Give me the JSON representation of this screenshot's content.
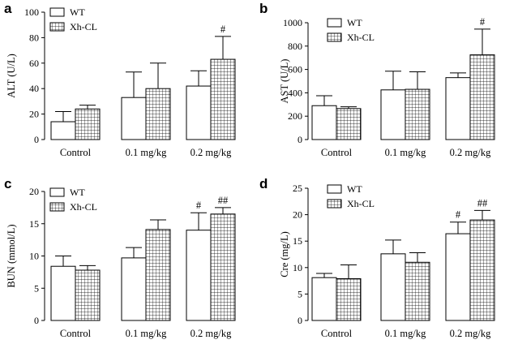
{
  "chart_data": [
    {
      "type": "bar",
      "panel": "a",
      "ylabel": "ALT (U/L)",
      "ylim": [
        0,
        100
      ],
      "yticks": [
        0,
        20,
        40,
        60,
        80,
        100
      ],
      "categories": [
        "Control",
        "0.1 mg/kg",
        "0.2 mg/kg"
      ],
      "series": [
        {
          "name": "WT",
          "pattern": "open",
          "values": [
            14,
            33,
            42
          ],
          "errors": [
            8,
            20,
            12
          ]
        },
        {
          "name": "Xh-CL",
          "pattern": "grid",
          "values": [
            24,
            40,
            63
          ],
          "errors": [
            3,
            20,
            18
          ]
        }
      ],
      "annotations": [
        {
          "series": 1,
          "category": 2,
          "text": "#"
        }
      ],
      "legend": "top-left"
    },
    {
      "type": "bar",
      "panel": "b",
      "ylabel": "AST (U/L)",
      "ylim": [
        0,
        1000
      ],
      "yticks": [
        0,
        200,
        400,
        600,
        800,
        1000
      ],
      "categories": [
        "Control",
        "0.1 mg/kg",
        "0.2 mg/kg"
      ],
      "series": [
        {
          "name": "WT",
          "pattern": "open",
          "values": [
            290,
            425,
            530
          ],
          "errors": [
            85,
            160,
            40
          ]
        },
        {
          "name": "Xh-CL",
          "pattern": "grid",
          "values": [
            265,
            430,
            725
          ],
          "errors": [
            15,
            150,
            220
          ]
        }
      ],
      "annotations": [
        {
          "series": 1,
          "category": 2,
          "text": "#"
        }
      ],
      "legend": "top-left"
    },
    {
      "type": "bar",
      "panel": "c",
      "ylabel": "BUN (mmol/L)",
      "ylim": [
        0,
        20
      ],
      "yticks": [
        0,
        5,
        10,
        15,
        20
      ],
      "categories": [
        "Control",
        "0.1 mg/kg",
        "0.2 mg/kg"
      ],
      "series": [
        {
          "name": "WT",
          "pattern": "open",
          "values": [
            8.4,
            9.7,
            14.0
          ],
          "errors": [
            1.6,
            1.6,
            2.7
          ]
        },
        {
          "name": "Xh-CL",
          "pattern": "grid",
          "values": [
            7.8,
            14.1,
            16.5
          ],
          "errors": [
            0.7,
            1.5,
            1.0
          ]
        }
      ],
      "annotations": [
        {
          "series": 0,
          "category": 2,
          "text": "#"
        },
        {
          "series": 1,
          "category": 2,
          "text": "##"
        }
      ],
      "legend": "top-left"
    },
    {
      "type": "bar",
      "panel": "d",
      "ylabel": "Cre (mg/L)",
      "ylim": [
        0,
        25
      ],
      "yticks": [
        0,
        5,
        10,
        15,
        20,
        25
      ],
      "categories": [
        "Control",
        "0.1 mg/kg",
        "0.2 mg/kg"
      ],
      "series": [
        {
          "name": "WT",
          "pattern": "open",
          "values": [
            8.1,
            12.6,
            16.4
          ],
          "errors": [
            0.8,
            2.6,
            2.2
          ]
        },
        {
          "name": "Xh-CL",
          "pattern": "grid",
          "values": [
            7.9,
            11.0,
            19.0
          ],
          "errors": [
            2.6,
            1.8,
            1.8
          ]
        }
      ],
      "annotations": [
        {
          "series": 0,
          "category": 2,
          "text": "#"
        },
        {
          "series": 1,
          "category": 2,
          "text": "##"
        }
      ],
      "legend": "top-left"
    }
  ]
}
